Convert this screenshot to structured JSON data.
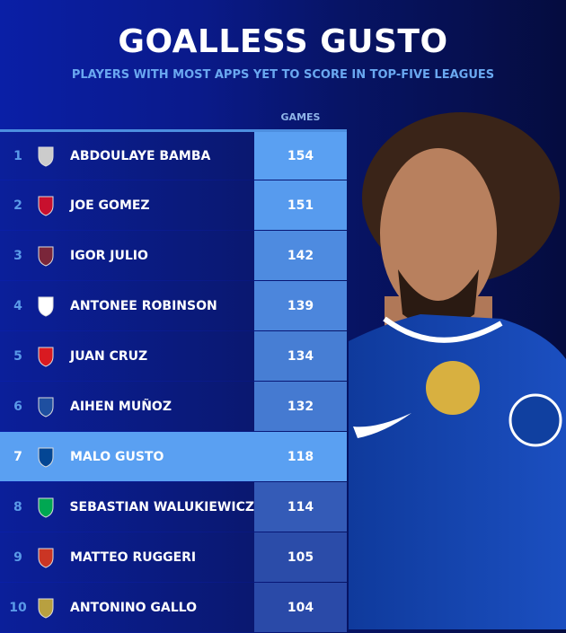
{
  "title": "GOALLESS GUSTO",
  "subtitle": "PLAYERS WITH MOST APPS YET TO SCORE IN TOP-FIVE LEAGUES",
  "chart_data": {
    "type": "table",
    "title": "GOALLESS GUSTO",
    "subtitle": "PLAYERS WITH MOST APPS YET TO SCORE IN TOP-FIVE LEAGUES",
    "column_header": "GAMES",
    "highlight_rank": 7,
    "rows": [
      {
        "rank": "1",
        "name": "ABDOULAYE BAMBA",
        "games": 154,
        "crest": "angers-crest-icon",
        "crest_color": "#cccccc"
      },
      {
        "rank": "2",
        "name": "JOE GOMEZ",
        "games": 151,
        "crest": "liverpool-crest-icon",
        "crest_color": "#c8102e"
      },
      {
        "rank": "3",
        "name": "IGOR JULIO",
        "games": 142,
        "crest": "west-ham-crest-icon",
        "crest_color": "#7a263a"
      },
      {
        "rank": "4",
        "name": "ANTONEE ROBINSON",
        "games": 139,
        "crest": "fulham-crest-icon",
        "crest_color": "#ffffff"
      },
      {
        "rank": "5",
        "name": "JUAN CRUZ",
        "games": 134,
        "crest": "osasuna-crest-icon",
        "crest_color": "#d91a21"
      },
      {
        "rank": "6",
        "name": "AIHEN MUÑOZ",
        "games": 132,
        "crest": "real-sociedad-crest-icon",
        "crest_color": "#1e4fa0"
      },
      {
        "rank": "7",
        "name": "MALO GUSTO",
        "games": 118,
        "crest": "chelsea-crest-icon",
        "crest_color": "#034694"
      },
      {
        "rank": "8",
        "name": "SEBASTIAN WALUKIEWICZ",
        "games": 114,
        "crest": "sassuolo-crest-icon",
        "crest_color": "#00a752"
      },
      {
        "rank": "9",
        "name": "MATTEO RUGGERI",
        "games": 105,
        "crest": "atletico-crest-icon",
        "crest_color": "#cb3524"
      },
      {
        "rank": "10",
        "name": "ANTONINO GALLO",
        "games": 104,
        "crest": "lecce-crest-icon",
        "crest_color": "#b8a040"
      }
    ]
  },
  "colors": {
    "highlight": "#5aa0f2",
    "rank": "#5a9ae8",
    "subtitle": "#6aa8f0"
  }
}
